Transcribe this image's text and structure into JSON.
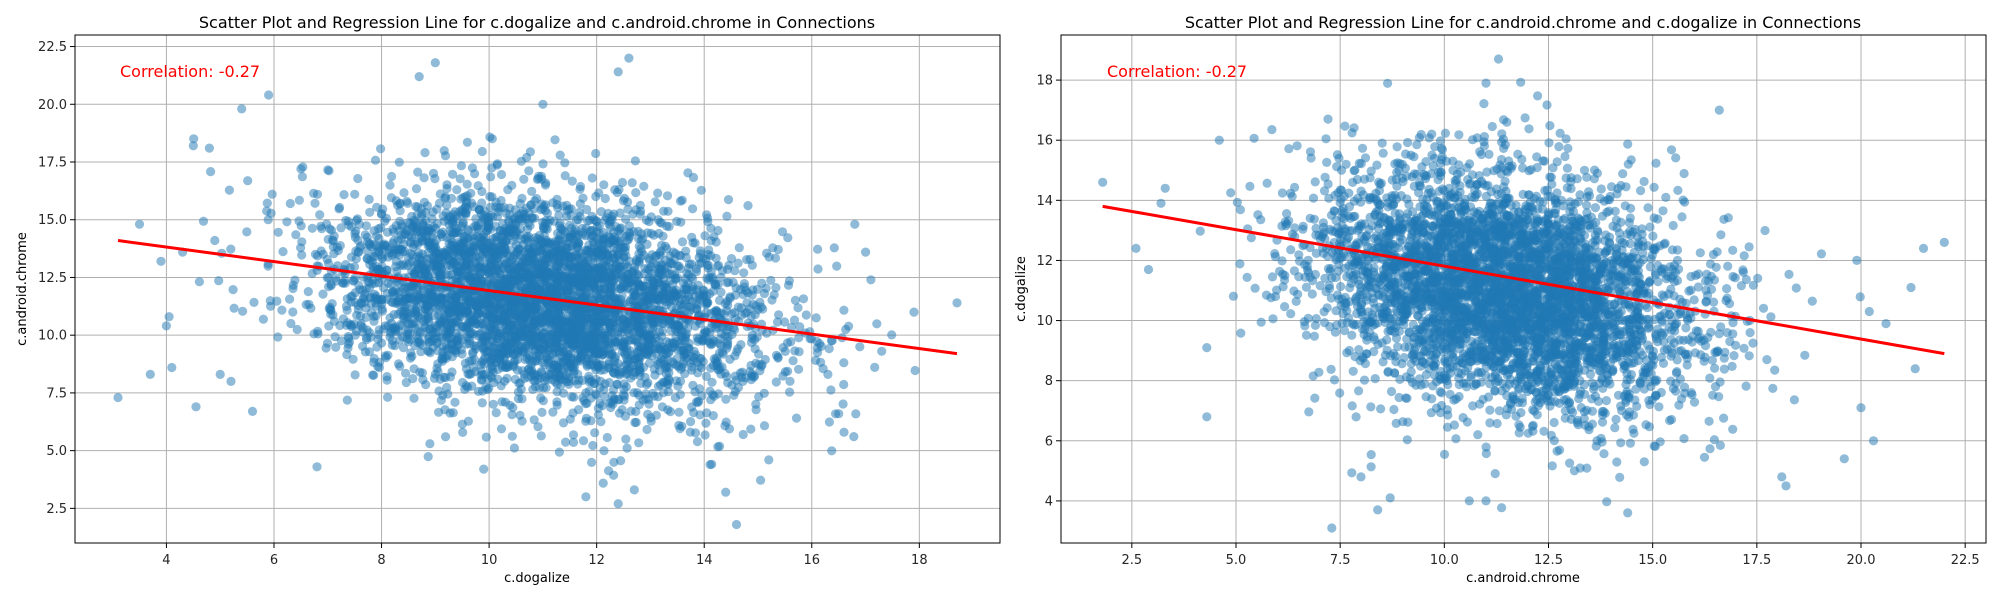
{
  "chart_data": [
    {
      "type": "scatter",
      "title": "Scatter Plot and Regression Line for c.dogalize and c.android.chrome in Connections",
      "xlabel": "c.dogalize",
      "ylabel": "c.android.chrome",
      "xlim": [
        2.3,
        19.5
      ],
      "ylim": [
        1.0,
        23.0
      ],
      "xticks": [
        4,
        6,
        8,
        10,
        12,
        14,
        16,
        18
      ],
      "xtick_labels": [
        "4",
        "6",
        "8",
        "10",
        "12",
        "14",
        "16",
        "18"
      ],
      "yticks": [
        2.5,
        5.0,
        7.5,
        10.0,
        12.5,
        15.0,
        17.5,
        20.0,
        22.5
      ],
      "ytick_labels": [
        "2.5",
        "5.0",
        "7.5",
        "10.0",
        "12.5",
        "15.0",
        "17.5",
        "20.0",
        "22.5"
      ],
      "grid": true,
      "annotation": "Correlation: -0.27",
      "regression": {
        "x": [
          3.1,
          18.7
        ],
        "y": [
          14.1,
          9.2
        ]
      },
      "cloud": {
        "x_mean": 11.0,
        "x_sd": 2.0,
        "y_mean": 11.5,
        "y_sd": 2.25,
        "rho": -0.27,
        "count": 4500
      },
      "points": [
        [
          3.1,
          7.3
        ],
        [
          3.5,
          14.8
        ],
        [
          3.7,
          8.3
        ],
        [
          3.9,
          13.2
        ],
        [
          4.0,
          10.4
        ],
        [
          4.05,
          10.8
        ],
        [
          4.1,
          8.6
        ],
        [
          4.3,
          13.6
        ],
        [
          4.5,
          18.2
        ],
        [
          4.55,
          6.9
        ],
        [
          4.8,
          18.1
        ],
        [
          4.9,
          14.1
        ],
        [
          5.0,
          8.3
        ],
        [
          5.2,
          8.0
        ],
        [
          5.4,
          19.8
        ],
        [
          5.6,
          6.7
        ],
        [
          5.9,
          20.4
        ],
        [
          6.5,
          17.2
        ],
        [
          6.8,
          4.3
        ],
        [
          8.7,
          21.2
        ],
        [
          9.0,
          21.8
        ],
        [
          8.9,
          5.3
        ],
        [
          9.9,
          4.2
        ],
        [
          11.0,
          20.0
        ],
        [
          12.4,
          21.4
        ],
        [
          12.6,
          22.0
        ],
        [
          11.8,
          3.0
        ],
        [
          12.4,
          2.7
        ],
        [
          12.7,
          3.3
        ],
        [
          14.4,
          3.2
        ],
        [
          14.6,
          1.8
        ],
        [
          15.2,
          4.6
        ],
        [
          16.3,
          8.3
        ],
        [
          16.8,
          14.8
        ],
        [
          17.1,
          12.4
        ],
        [
          17.3,
          9.3
        ],
        [
          17.9,
          11.0
        ],
        [
          18.7,
          11.4
        ],
        [
          17.0,
          13.6
        ],
        [
          16.5,
          6.6
        ],
        [
          16.6,
          5.8
        ]
      ]
    },
    {
      "type": "scatter",
      "title": "Scatter Plot and Regression Line for c.android.chrome and c.dogalize in Connections",
      "xlabel": "c.android.chrome",
      "ylabel": "c.dogalize",
      "xlim": [
        0.8,
        23.0
      ],
      "ylim": [
        2.6,
        19.5
      ],
      "xticks": [
        2.5,
        5.0,
        7.5,
        10.0,
        12.5,
        15.0,
        17.5,
        20.0,
        22.5
      ],
      "xtick_labels": [
        "2.5",
        "5.0",
        "7.5",
        "10.0",
        "12.5",
        "15.0",
        "17.5",
        "20.0",
        "22.5"
      ],
      "yticks": [
        4,
        6,
        8,
        10,
        12,
        14,
        16,
        18
      ],
      "ytick_labels": [
        "4",
        "6",
        "8",
        "10",
        "12",
        "14",
        "16",
        "18"
      ],
      "grid": true,
      "annotation": "Correlation: -0.27",
      "regression": {
        "x": [
          1.8,
          22.0
        ],
        "y": [
          13.8,
          8.9
        ]
      },
      "cloud": {
        "x_mean": 11.5,
        "x_sd": 2.25,
        "y_mean": 11.0,
        "y_sd": 2.0,
        "rho": -0.27,
        "count": 4500
      },
      "points": [
        [
          1.8,
          14.6
        ],
        [
          2.6,
          12.4
        ],
        [
          2.9,
          11.7
        ],
        [
          3.2,
          13.9
        ],
        [
          3.3,
          14.4
        ],
        [
          4.3,
          6.8
        ],
        [
          4.3,
          9.1
        ],
        [
          4.6,
          16.0
        ],
        [
          7.3,
          3.1
        ],
        [
          8.0,
          4.8
        ],
        [
          8.4,
          3.7
        ],
        [
          8.7,
          4.1
        ],
        [
          10.6,
          4.0
        ],
        [
          11.0,
          4.0
        ],
        [
          11.3,
          18.7
        ],
        [
          11.0,
          17.9
        ],
        [
          11.5,
          16.6
        ],
        [
          14.4,
          3.6
        ],
        [
          14.8,
          5.3
        ],
        [
          19.6,
          5.4
        ],
        [
          20.3,
          6.0
        ],
        [
          20.0,
          7.1
        ],
        [
          20.2,
          10.3
        ],
        [
          21.3,
          8.4
        ],
        [
          21.5,
          12.4
        ],
        [
          22.0,
          12.6
        ],
        [
          21.2,
          11.1
        ],
        [
          20.6,
          9.9
        ],
        [
          19.9,
          12.0
        ],
        [
          18.2,
          4.5
        ],
        [
          18.1,
          4.8
        ],
        [
          16.6,
          17.0
        ]
      ]
    }
  ]
}
